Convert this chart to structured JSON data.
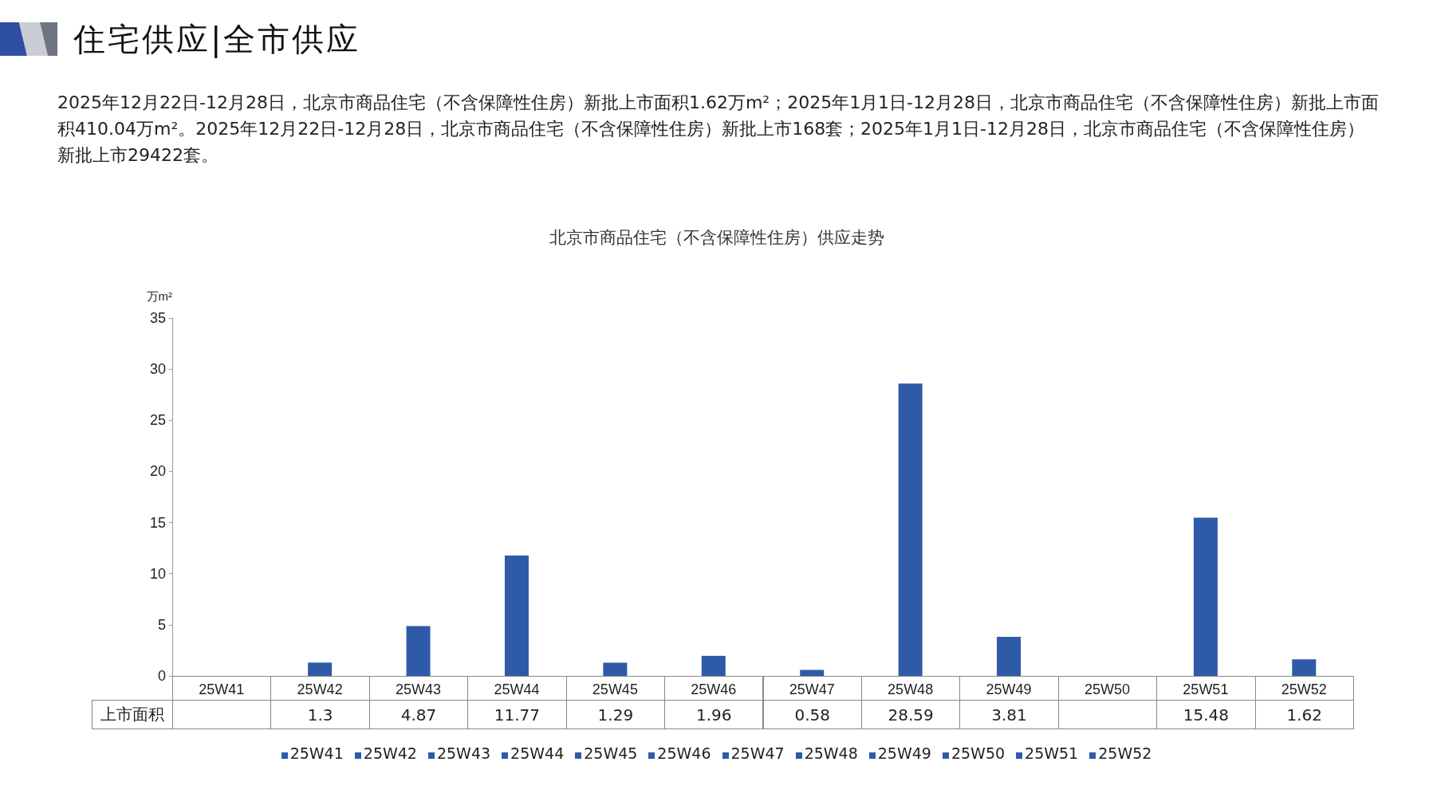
{
  "chart_data": {
    "type": "bar",
    "title": "北京市商品住宅（不含保障性住房）供应走势",
    "annotations": [
      "住宅供应|全市供应",
      "2025年12月22日-12月28日，北京市商品住宅（不含保障性住房）新批上市面积1.62万m²；2025年1月1日-12月28日，北京市商品住宅（不含保障性住房）新批上市面积410.04万m²。2025年12月22日-12月28日，北京市商品住宅（不含保障性住房）新批上市168套；2025年1月1日-12月28日，北京市商品住宅（不含保障性住房）新批上市29422套。"
    ],
    "ylabel": "万m²",
    "categories": [
      "25W41",
      "25W42",
      "25W43",
      "25W44",
      "25W45",
      "25W46",
      "25W47",
      "25W48",
      "25W49",
      "25W50",
      "25W51",
      "25W52"
    ],
    "series": [
      {
        "name": "上市面积",
        "color": "#2f5aa8",
        "values": [
          null,
          1.3,
          4.87,
          11.77,
          1.29,
          1.96,
          0.58,
          28.59,
          3.81,
          null,
          15.48,
          1.62
        ]
      }
    ],
    "ylim": [
      0,
      35
    ],
    "yticks": [
      0,
      5,
      10,
      15,
      20,
      25,
      30,
      35
    ],
    "data_labels": true,
    "grid": false,
    "legend": "bottom"
  }
}
